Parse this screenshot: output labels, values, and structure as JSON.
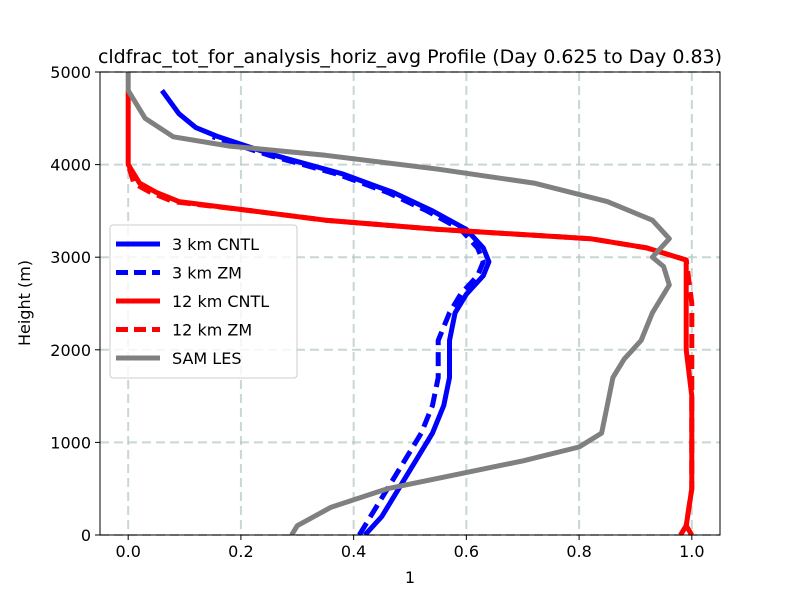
{
  "chart_data": {
    "type": "line",
    "title": "cldfrac_tot_for_analysis_horiz_avg Profile (Day 0.625 to Day 0.83)",
    "xlabel": "1",
    "ylabel": "Height (m)",
    "xlim": [
      -0.05,
      1.05
    ],
    "ylim": [
      0,
      5000
    ],
    "xticks": [
      0.0,
      0.2,
      0.4,
      0.6,
      0.8,
      1.0
    ],
    "xtick_labels": [
      "0.0",
      "0.2",
      "0.4",
      "0.6",
      "0.8",
      "1.0"
    ],
    "yticks": [
      0,
      1000,
      2000,
      3000,
      4000,
      5000
    ],
    "ytick_labels": [
      "0",
      "1000",
      "2000",
      "3000",
      "4000",
      "5000"
    ],
    "grid": true,
    "legend_position": "center-left",
    "series": [
      {
        "name": "3 km CNTL",
        "color": "#0000ff",
        "style": "solid",
        "x": [
          0.42,
          0.45,
          0.48,
          0.51,
          0.54,
          0.56,
          0.57,
          0.57,
          0.58,
          0.6,
          0.63,
          0.64,
          0.63,
          0.6,
          0.54,
          0.47,
          0.38,
          0.26,
          0.16,
          0.12,
          0.09,
          0.06
        ],
        "y": [
          0,
          200,
          500,
          800,
          1100,
          1400,
          1700,
          2100,
          2400,
          2600,
          2800,
          2950,
          3100,
          3300,
          3500,
          3700,
          3900,
          4100,
          4300,
          4400,
          4550,
          4800
        ]
      },
      {
        "name": "3 km ZM",
        "color": "#0000ff",
        "style": "dashed",
        "x": [
          0.41,
          0.43,
          0.46,
          0.49,
          0.52,
          0.54,
          0.55,
          0.55,
          0.57,
          0.59,
          0.62,
          0.63,
          0.62,
          0.59,
          0.53,
          0.46,
          0.37,
          0.25,
          0.15
        ],
        "y": [
          0,
          200,
          500,
          800,
          1100,
          1400,
          1700,
          2100,
          2400,
          2600,
          2800,
          2950,
          3100,
          3300,
          3500,
          3700,
          3900,
          4100,
          4300
        ]
      },
      {
        "name": "12 km CNTL",
        "color": "#ff0000",
        "style": "solid",
        "x": [
          0.98,
          0.99,
          1.0,
          1.0,
          1.0,
          0.99,
          0.99,
          0.99,
          0.92,
          0.82,
          0.55,
          0.35,
          0.22,
          0.09,
          0.05,
          0.02,
          0.0,
          0.0,
          0.0,
          0.0
        ],
        "y": [
          0,
          100,
          500,
          1000,
          1500,
          2000,
          2500,
          2970,
          3100,
          3200,
          3300,
          3400,
          3500,
          3600,
          3700,
          3800,
          4000,
          4300,
          4600,
          4800
        ]
      },
      {
        "name": "12 km ZM",
        "color": "#ff0000",
        "style": "dashed",
        "x": [
          1.0,
          0.99,
          1.0,
          1.0,
          1.0,
          1.0,
          1.0,
          0.99,
          0.92,
          0.82,
          0.55,
          0.35,
          0.22,
          0.08,
          0.04,
          0.01,
          0.0
        ],
        "y": [
          0,
          100,
          500,
          1000,
          1500,
          2000,
          2500,
          2970,
          3100,
          3200,
          3300,
          3400,
          3500,
          3600,
          3700,
          3800,
          4000
        ]
      },
      {
        "name": "SAM LES",
        "color": "#808080",
        "style": "solid",
        "x": [
          0.29,
          0.3,
          0.36,
          0.46,
          0.58,
          0.7,
          0.8,
          0.84,
          0.85,
          0.86,
          0.88,
          0.91,
          0.93,
          0.96,
          0.95,
          0.93,
          0.96,
          0.93,
          0.85,
          0.72,
          0.55,
          0.35,
          0.18,
          0.08,
          0.03,
          0.0,
          0.0
        ],
        "y": [
          0,
          100,
          300,
          500,
          650,
          800,
          950,
          1100,
          1400,
          1700,
          1900,
          2100,
          2400,
          2700,
          2900,
          3000,
          3200,
          3400,
          3600,
          3800,
          3950,
          4100,
          4200,
          4300,
          4500,
          4800,
          5000
        ]
      }
    ]
  }
}
